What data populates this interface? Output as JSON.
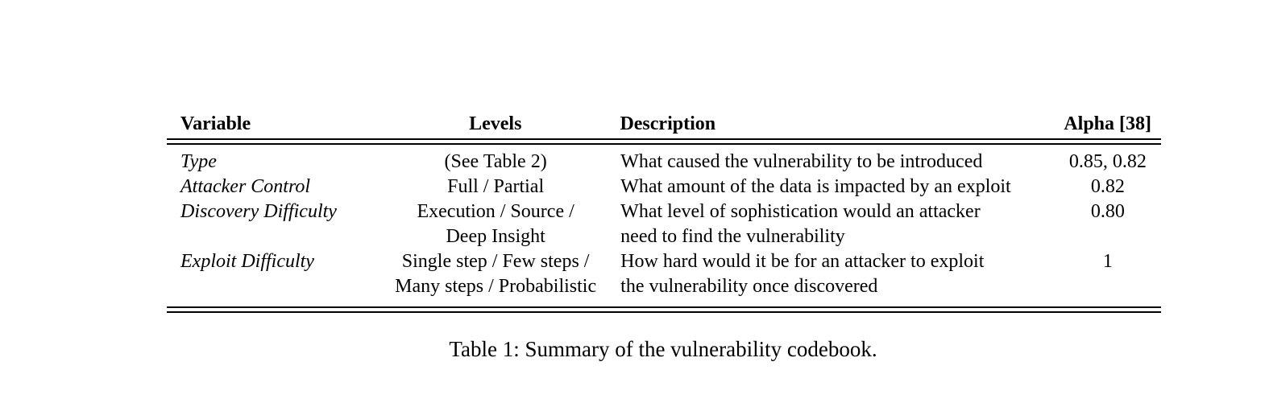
{
  "table": {
    "headers": {
      "variable": "Variable",
      "levels": "Levels",
      "description": "Description",
      "alpha": "Alpha [38]"
    },
    "rows": [
      {
        "variable": "Type",
        "levels": [
          "(See Table 2)"
        ],
        "description": [
          "What caused the vulnerability to be introduced"
        ],
        "alpha": "0.85, 0.82"
      },
      {
        "variable": "Attacker Control",
        "levels": [
          "Full / Partial"
        ],
        "description": [
          "What amount of the data is impacted by an exploit"
        ],
        "alpha": "0.82"
      },
      {
        "variable": "Discovery Difficulty",
        "levels": [
          "Execution / Source /",
          "Deep Insight"
        ],
        "description": [
          "What level of sophistication would an attacker",
          "need to find the vulnerability"
        ],
        "alpha": "0.80"
      },
      {
        "variable": "Exploit Difficulty",
        "levels": [
          "Single step / Few steps /",
          "Many steps / Probabilistic"
        ],
        "description": [
          "How hard would it be for an attacker to exploit",
          "the vulnerability once discovered"
        ],
        "alpha": "1"
      }
    ]
  },
  "caption": "Table 1: Summary of the vulnerability codebook."
}
